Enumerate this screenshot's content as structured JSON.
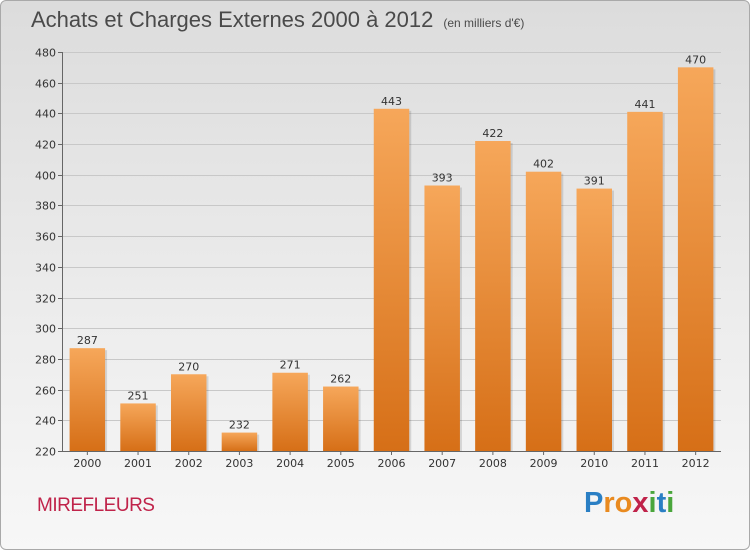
{
  "header": {
    "title": "Achats et Charges Externes 2000 à 2012",
    "subtitle": "(en milliers d'€)"
  },
  "footer": {
    "town": "MIREFLEURS",
    "logo": {
      "text": "Proxiti",
      "letters": [
        {
          "char": "P",
          "color": "#2a7fc4"
        },
        {
          "char": "r",
          "color": "#e98a1f"
        },
        {
          "char": "o",
          "color": "#e98a1f"
        },
        {
          "char": "x",
          "color": "#c0234a"
        },
        {
          "char": "i",
          "color": "#4aa63c"
        },
        {
          "char": "t",
          "color": "#2a7fc4"
        },
        {
          "char": "i",
          "color": "#4aa63c"
        }
      ]
    }
  },
  "colors": {
    "bar_top": "#f6a75a",
    "bar_bottom": "#d66f17",
    "grid": "#c8c8c8",
    "town": "#c0234a"
  },
  "chart_data": {
    "type": "bar",
    "title": "Achats et Charges Externes 2000 à 2012",
    "subtitle": "(en milliers d'€)",
    "categories": [
      "2000",
      "2001",
      "2002",
      "2003",
      "2004",
      "2005",
      "2006",
      "2007",
      "2008",
      "2009",
      "2010",
      "2011",
      "2012"
    ],
    "values": [
      287,
      251,
      270,
      232,
      271,
      262,
      443,
      393,
      422,
      402,
      391,
      441,
      470
    ],
    "ylim": [
      220,
      480
    ],
    "yticks": [
      220,
      240,
      260,
      280,
      300,
      320,
      340,
      360,
      380,
      400,
      420,
      440,
      460,
      480
    ],
    "grid": true,
    "data_labels": true
  }
}
